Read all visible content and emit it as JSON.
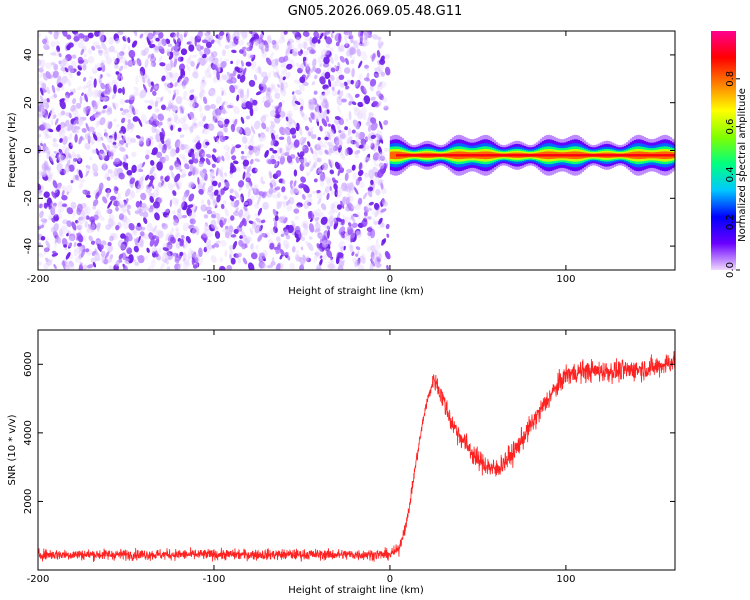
{
  "title": "GN05.2026.069.05.48.G11",
  "colors": {
    "snr_line": "#ff2020",
    "dots": "#8a2be2"
  },
  "chart_data": [
    {
      "type": "heatmap",
      "xlabel": "Height of straight line (km)",
      "ylabel": "Frequency (Hz)",
      "xlim": [
        -200,
        162
      ],
      "ylim": [
        -50,
        50
      ],
      "xticks": [
        -200,
        -100,
        0,
        100
      ],
      "yticks": [
        -40,
        -20,
        0,
        20,
        40
      ],
      "colorbar": {
        "label": "Normalized spectral amplitude",
        "range": [
          0,
          1
        ],
        "ticks": [
          "0.0",
          "0.2",
          "0.4",
          "0.6",
          "0.8"
        ],
        "tick_values": [
          0.0,
          0.2,
          0.4,
          0.6,
          0.8
        ],
        "colormap": [
          "#f0d8ff",
          "#6a00ff",
          "#0000ff",
          "#00c8ff",
          "#00ff80",
          "#80ff00",
          "#ffff00",
          "#ff8000",
          "#ff0000",
          "#ff0090"
        ]
      },
      "noise_region": {
        "x_range": [
          -200,
          0
        ],
        "freq_range": [
          -50,
          50
        ]
      },
      "signal_band": {
        "x_range": [
          0,
          162
        ],
        "center_freq": -2,
        "half_width": 2,
        "peak_amplitude": 0.9
      }
    },
    {
      "type": "line",
      "xlabel": "Height of straight line (km)",
      "ylabel": "SNR (10 * v/v)",
      "xlim": [
        -200,
        162
      ],
      "ylim": [
        0,
        7000
      ],
      "xticks": [
        -200,
        -100,
        0,
        100
      ],
      "yticks": [
        2000,
        4000,
        6000
      ],
      "trend_x": [
        -200,
        -100,
        0,
        5,
        10,
        15,
        20,
        25,
        30,
        35,
        40,
        50,
        60,
        70,
        80,
        90,
        100,
        110,
        130,
        150,
        162
      ],
      "trend_y": [
        450,
        450,
        450,
        600,
        1500,
        3200,
        4700,
        5600,
        5000,
        4300,
        3900,
        3200,
        2900,
        3400,
        4200,
        5000,
        5700,
        5800,
        5800,
        5900,
        6100
      ]
    }
  ]
}
